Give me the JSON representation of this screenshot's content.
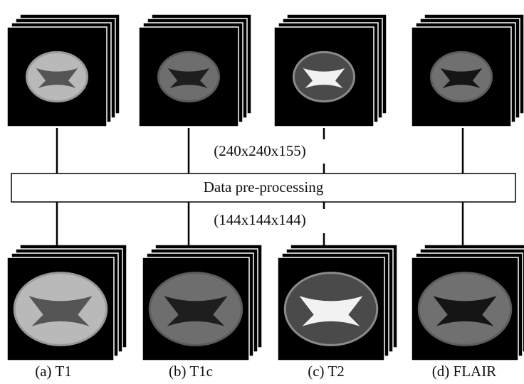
{
  "input_size": "(240x240x155)",
  "process": "Data pre-processing",
  "output_size": "(144x144x144)",
  "captions": [
    "(a) T1",
    "(b) T1c",
    "(c) T2",
    "(d) FLAIR"
  ]
}
